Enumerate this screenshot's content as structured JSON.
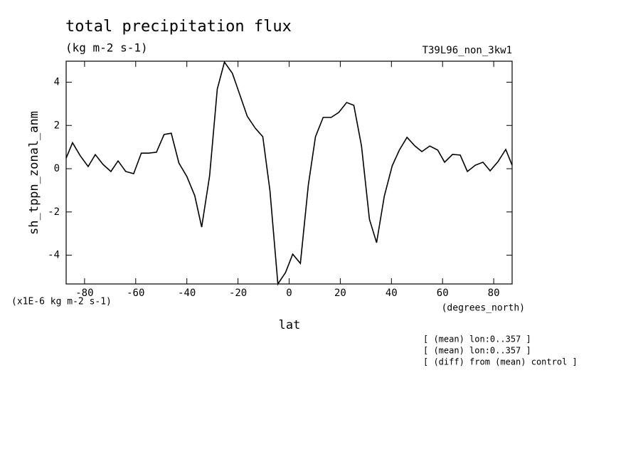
{
  "chart_data": {
    "type": "line",
    "title": "total precipitation flux",
    "subtitle": "(kg m-2 s-1)",
    "dataset_label": "T39L96_non_3kw1",
    "ylabel": "sh_tppn_zonal_anm",
    "xlabel": "lat",
    "xunits": "(degrees_north)",
    "yunits": "(x1E-6 kg m-2 s-1)",
    "annotations": [
      "[ (mean) lon:0..357 ]",
      "[ (mean) lon:0..357 ]",
      "[ (diff) from (mean) control ]"
    ],
    "x": [
      -87.2,
      -84.7,
      -81.7,
      -78.6,
      -75.8,
      -72.8,
      -69.7,
      -66.9,
      -63.9,
      -60.8,
      -57.8,
      -55,
      -51.9,
      -48.9,
      -46.1,
      -43.1,
      -40,
      -36.9,
      -34.2,
      -31.1,
      -28.1,
      -25.3,
      -22.2,
      -19.2,
      -16.4,
      -13.3,
      -10.3,
      -7.5,
      -4.4,
      -1.4,
      1.4,
      4.4,
      7.5,
      10.3,
      13.3,
      16.4,
      19.4,
      22.5,
      25.3,
      28.3,
      31.4,
      34.2,
      37.2,
      40.3,
      43.1,
      46.1,
      49.2,
      51.9,
      55,
      58.1,
      60.8,
      63.9,
      66.9,
      69.7,
      72.8,
      75.8,
      78.6,
      81.7,
      84.7,
      87.2
    ],
    "series": [
      {
        "name": "sh_tppn_zonal_anm",
        "color": "#000000",
        "values": [
          0.49,
          1.2,
          0.6,
          0.1,
          0.65,
          0.2,
          -0.13,
          0.36,
          -0.13,
          -0.23,
          0.72,
          0.72,
          0.76,
          1.58,
          1.64,
          0.26,
          -0.36,
          -1.25,
          -2.7,
          -0.33,
          3.68,
          4.93,
          4.41,
          3.39,
          2.43,
          1.88,
          1.48,
          -1.02,
          -5.33,
          -4.8,
          -3.95,
          -4.38,
          -0.76,
          1.48,
          2.37,
          2.37,
          2.6,
          3.06,
          2.93,
          1.05,
          -2.34,
          -3.42,
          -1.28,
          0.13,
          0.86,
          1.45,
          1.05,
          0.79,
          1.05,
          0.86,
          0.3,
          0.66,
          0.63,
          -0.13,
          0.16,
          0.3,
          -0.1,
          0.33,
          0.89,
          0.16
        ]
      }
    ],
    "xlim": [
      -87.2,
      87.2
    ],
    "ylim": [
      -5.33,
      4.97
    ],
    "xticks": [
      -80,
      -60,
      -40,
      -20,
      0,
      20,
      40,
      60,
      80
    ],
    "yticks": [
      -4,
      -2,
      0,
      2,
      4
    ],
    "grid": false
  }
}
